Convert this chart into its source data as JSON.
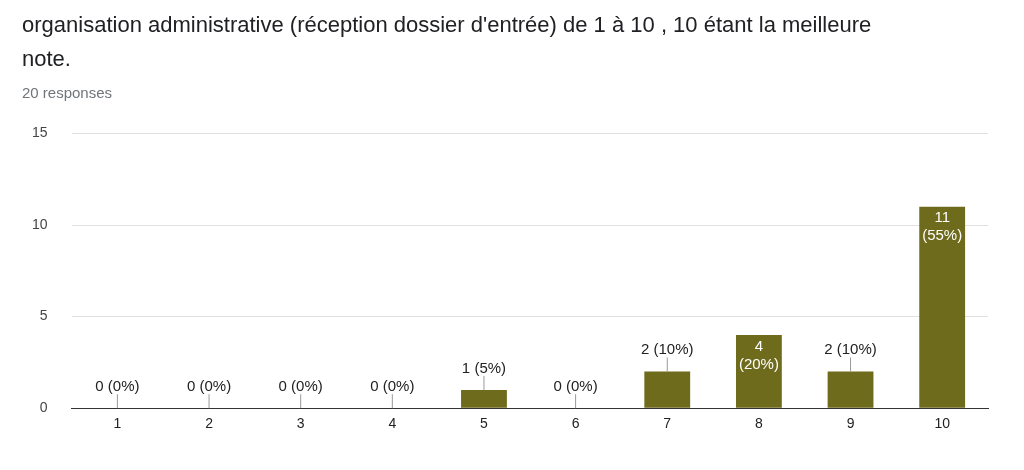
{
  "chart_data": {
    "type": "bar",
    "title": "organisation administrative (réception dossier d'entrée) de 1 à 10 , 10 étant la meilleure note.",
    "subtitle": "20 responses",
    "categories": [
      "1",
      "2",
      "3",
      "4",
      "5",
      "6",
      "7",
      "8",
      "9",
      "10"
    ],
    "values": [
      0,
      0,
      0,
      0,
      1,
      0,
      2,
      4,
      2,
      11
    ],
    "value_labels": [
      "0 (0%)",
      "0 (0%)",
      "0 (0%)",
      "0 (0%)",
      "1 (5%)",
      "0 (0%)",
      "2 (10%)",
      "4 (20%)",
      "2 (10%)",
      "11 (55%)"
    ],
    "color": "#6f6b1c",
    "ylim": [
      0,
      15
    ],
    "yticks": [
      0,
      5,
      10,
      15
    ],
    "grid": "y",
    "legend": false
  }
}
